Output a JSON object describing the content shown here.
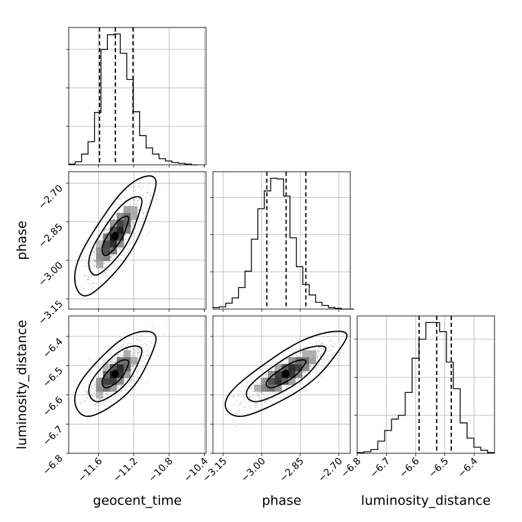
{
  "chart_data": {
    "type": "corner",
    "parameters": [
      "geocent_time",
      "phase",
      "luminosity_distance"
    ],
    "axes": {
      "geocent_time": {
        "label": "geocent_time",
        "range": [
          -11.94,
          -10.38
        ],
        "ticks": [
          -11.6,
          -11.2,
          -10.8,
          -10.4
        ],
        "tick_labels": [
          "−11.6",
          "−11.2",
          "−10.8",
          "−10.4"
        ]
      },
      "phase": {
        "label": "phase",
        "range": [
          -3.19,
          -2.655
        ],
        "ticks": [
          -3.15,
          -3.0,
          -2.85,
          -2.7
        ],
        "tick_labels": [
          "−3.15",
          "−3.00",
          "−2.85",
          "−2.70"
        ]
      },
      "luminosity_distance": {
        "label": "luminosity_distance",
        "range": [
          -6.8,
          -6.33
        ],
        "ticks": [
          -6.8,
          -6.7,
          -6.6,
          -6.5,
          -6.4
        ],
        "tick_labels": [
          "−6.8",
          "−6.7",
          "−6.6",
          "−6.5",
          "−6.4"
        ]
      }
    },
    "histograms": [
      {
        "param": "geocent_time",
        "bin_edges_start": -11.94,
        "bin_width": 0.0733,
        "counts": [
          1,
          4,
          14,
          30,
          68,
          150,
          169,
          170,
          145,
          111,
          69,
          38,
          22,
          14,
          8,
          5,
          3,
          2,
          1,
          0
        ],
        "quantiles": [
          -11.59,
          -11.41,
          -11.21
        ]
      },
      {
        "param": "phase",
        "bin_edges_start": -3.19,
        "bin_width": 0.025,
        "counts": [
          2,
          3,
          8,
          15,
          29,
          51,
          94,
          135,
          159,
          176,
          175,
          152,
          96,
          57,
          33,
          19,
          9,
          5,
          2,
          1,
          0,
          0
        ],
        "quantiles": [
          -2.98,
          -2.905,
          -2.828
        ]
      },
      {
        "param": "luminosity_distance",
        "bin_edges_start": -6.8,
        "bin_width": 0.0235,
        "counts": [
          1,
          2,
          5,
          16,
          30,
          45,
          50,
          80,
          125,
          150,
          172,
          172,
          160,
          120,
          85,
          40,
          20,
          8,
          4,
          1
        ],
        "quantiles": [
          -6.588,
          -6.528,
          -6.478
        ]
      }
    ],
    "pairs": [
      {
        "x": "geocent_time",
        "y": "phase",
        "center": [
          -11.41,
          -2.905
        ],
        "sigma": [
          0.15,
          0.077
        ],
        "correlation": 0.8
      },
      {
        "x": "geocent_time",
        "y": "luminosity_distance",
        "center": [
          -11.41,
          -6.528
        ],
        "sigma": [
          0.15,
          0.048
        ],
        "correlation": 0.72
      },
      {
        "x": "phase",
        "y": "luminosity_distance",
        "center": [
          -2.905,
          -6.528
        ],
        "sigma": [
          0.077,
          0.048
        ],
        "correlation": 0.82
      }
    ],
    "contour_levels": [
      0.39,
      0.86,
      0.99
    ],
    "grid": true,
    "colors": {
      "line": "#000000",
      "grid": "#b0b0b0",
      "points": "#000000"
    }
  }
}
